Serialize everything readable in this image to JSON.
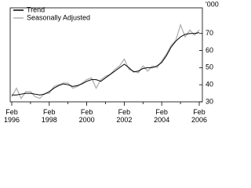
{
  "chart_data": {
    "type": "line",
    "y_label": "'000",
    "categories": [
      "Feb 1996",
      null,
      null,
      null,
      null,
      null,
      null,
      null,
      "Feb 1998",
      null,
      null,
      null,
      null,
      null,
      null,
      null,
      "Feb 2000",
      null,
      null,
      null,
      null,
      null,
      null,
      null,
      "Feb 2002",
      null,
      null,
      null,
      null,
      null,
      null,
      null,
      "Feb 2004",
      null,
      null,
      null,
      null,
      null,
      null,
      null,
      "Feb 2006"
    ],
    "series": [
      {
        "name": "Trend",
        "color": "#000000",
        "values": [
          34,
          34,
          34.5,
          35,
          35,
          34.5,
          34,
          34.5,
          36,
          38,
          39.5,
          40.5,
          40,
          39,
          39.5,
          40.5,
          42,
          43,
          43,
          42,
          44,
          46,
          48,
          50,
          52,
          50,
          47.5,
          48,
          49.5,
          50,
          50,
          51,
          53,
          57,
          62,
          65.5,
          68,
          69.5,
          70,
          70,
          70.5
        ]
      },
      {
        "name": "Seasonally Adjusted",
        "color": "#b0b0b0",
        "values": [
          33,
          38,
          32,
          36,
          36,
          33,
          32,
          35,
          35,
          39,
          40,
          41,
          41,
          38,
          39,
          41,
          43,
          44,
          38,
          43,
          45,
          46,
          49,
          51,
          55,
          49,
          48,
          47,
          51,
          48,
          51,
          50,
          54,
          58,
          63,
          66,
          75,
          68,
          72,
          69,
          72
        ]
      }
    ],
    "ylim": [
      30,
      85
    ],
    "yticks": [
      30,
      40,
      50,
      60,
      70
    ],
    "grid": false
  }
}
